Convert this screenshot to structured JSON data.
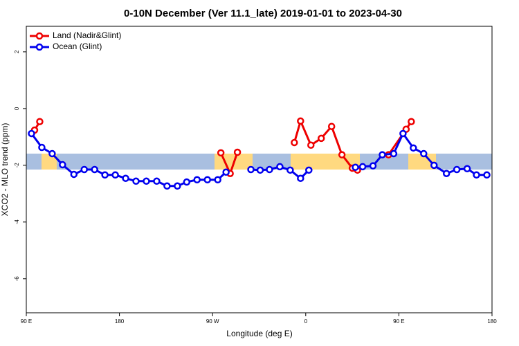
{
  "chart_data": {
    "type": "line",
    "title": "0-10N December (Ver 11.1_late)   2019-01-01 to 2023-04-30",
    "xlabel": "Longitude (deg E)",
    "ylabel": "XCO2 - MLO trend (ppm)",
    "xlim": [
      90,
      540
    ],
    "ylim": [
      -7.2,
      2.9
    ],
    "xticks": [
      {
        "value": 90,
        "label": "90 E"
      },
      180,
      {
        "value": 270,
        "label": "90 W"
      },
      {
        "value": 360,
        "label": "0"
      },
      {
        "value": 450,
        "label": "90 E"
      },
      {
        "value": 540,
        "label": "180"
      }
    ],
    "yticks": [
      2,
      0,
      -2,
      -4,
      -6
    ],
    "legend": "top-left",
    "series": [
      {
        "name": "Land (Nadir&Glint)",
        "color": "#ee0000",
        "x": [
          98,
          103,
          200,
          278,
          287,
          294,
          320,
          349,
          355,
          365,
          375,
          385,
          395,
          405,
          410,
          425,
          440,
          457,
          462
        ],
        "values": [
          -0.76,
          -0.46,
          null,
          -1.56,
          -2.29,
          -1.54,
          null,
          -1.2,
          -0.44,
          -1.29,
          -1.05,
          -0.63,
          -1.63,
          -2.1,
          -2.17,
          null,
          -1.63,
          -0.73,
          -0.46
        ]
      },
      {
        "name": "Ocean (Glint)",
        "color": "#0000ee",
        "x": [
          95,
          105,
          115,
          125,
          136,
          146,
          156,
          166,
          176,
          186,
          196,
          206,
          216,
          226,
          236,
          245,
          255,
          265,
          275,
          283,
          295,
          307,
          316,
          325,
          335,
          345,
          355,
          363,
          385,
          408,
          415,
          425,
          434,
          445,
          454,
          464,
          474,
          484,
          496,
          506,
          516,
          525,
          535
        ],
        "values": [
          -0.88,
          -1.37,
          -1.59,
          -1.98,
          -2.32,
          -2.15,
          -2.15,
          -2.34,
          -2.34,
          -2.46,
          -2.56,
          -2.56,
          -2.56,
          -2.73,
          -2.73,
          -2.59,
          -2.51,
          -2.51,
          -2.51,
          -2.24,
          null,
          -2.15,
          -2.17,
          -2.15,
          -2.05,
          -2.17,
          -2.46,
          -2.17,
          null,
          -2.07,
          -2.05,
          -2.02,
          -1.63,
          -1.59,
          -0.88,
          -1.39,
          -1.59,
          -2.0,
          -2.29,
          -2.15,
          -2.12,
          -2.34,
          -2.34
        ]
      }
    ]
  }
}
